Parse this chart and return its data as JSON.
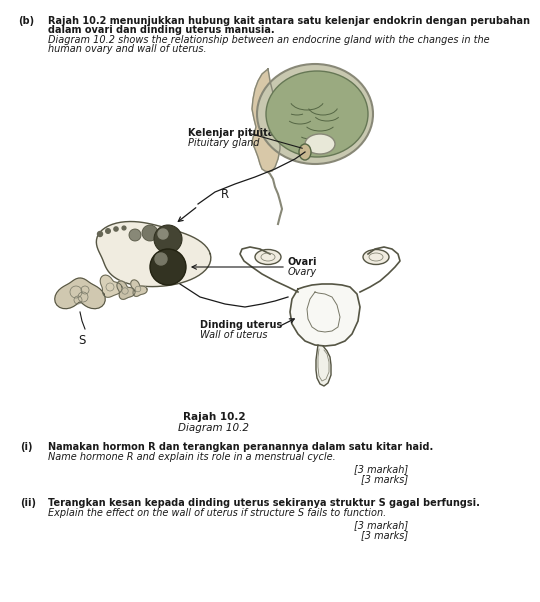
{
  "bg_color": "#ffffff",
  "text_color": "#1a1a1a",
  "title_b_prefix": "(b)",
  "title_b_ms1": "Rajah 10.2 menunjukkan hubung kait antara satu kelenjar endokrin dengan perubahan",
  "title_b_ms2": "dalam ovari dan dinding uterus manusia.",
  "title_b_en1": "Diagram 10.2 shows the relationship between an endocrine gland with the changes in the",
  "title_b_en2": "human ovary and wall of uterus.",
  "label_pituitary_ms": "Kelenjar pituitari",
  "label_pituitary_en": "Pituitary gland",
  "label_R": "R",
  "label_ovari_ms": "Ovari",
  "label_ovari_en": "Ovary",
  "label_S": "S",
  "label_dinding_ms": "Dinding uterus",
  "label_dinding_en": "Wall of uterus",
  "caption_ms": "Rajah 10.2",
  "caption_en": "Diagram 10.2",
  "q_i_prefix": "(i)",
  "q_i_ms": "Namakan hormon R dan terangkan peranannya dalam satu kitar haid.",
  "q_i_en": "Name hormone R and explain its role in a menstrual cycle.",
  "marks_i_ms": "[3 markah]",
  "marks_i_en": "[3 marks]",
  "q_ii_prefix": "(ii)",
  "q_ii_ms": "Terangkan kesan kepada dinding uterus sekiranya struktur S gagal berfungsi.",
  "q_ii_en": "Explain the effect on the wall of uterus if structure S fails to function.",
  "marks_ii_ms": "[3 markah]",
  "marks_ii_en": "[3 marks]"
}
